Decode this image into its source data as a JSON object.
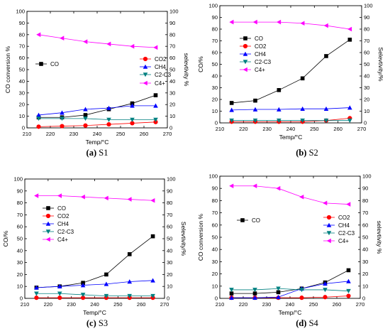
{
  "chart_data": [
    {
      "type": "line",
      "caption": {
        "letter": "(a)",
        "name": "S1"
      },
      "xlabel": "Temp/°C",
      "ylabel": "CO conversion %",
      "ylabel_right": "selevtivity %",
      "xlim": [
        210,
        270
      ],
      "xticks": [
        210,
        220,
        230,
        240,
        250,
        260,
        270
      ],
      "ylim": [
        0,
        100
      ],
      "yticks": [
        0,
        10,
        20,
        30,
        40,
        50,
        60,
        70,
        80,
        90,
        100
      ],
      "x": [
        215,
        225,
        235,
        245,
        255,
        265
      ],
      "legend": "split",
      "series": [
        {
          "name": "CO",
          "color": "#000000",
          "marker": "square",
          "axis": "left",
          "values": [
            9,
            9,
            11,
            16,
            21,
            28
          ]
        },
        {
          "name": "CO2",
          "color": "#ff0000",
          "marker": "circle",
          "axis": "right",
          "values": [
            1,
            1.5,
            2,
            3,
            4,
            5
          ]
        },
        {
          "name": "CH4",
          "color": "#0000ff",
          "marker": "triangle-up",
          "axis": "right",
          "values": [
            11,
            13,
            16,
            17,
            19,
            19
          ]
        },
        {
          "name": "C2-C3",
          "color": "#008080",
          "marker": "triangle-down",
          "axis": "right",
          "values": [
            8,
            8,
            8,
            7,
            7,
            7
          ]
        },
        {
          "name": "C4+",
          "color": "#ff00ff",
          "marker": "triangle-left",
          "axis": "right",
          "values": [
            80,
            77,
            74,
            72,
            70,
            69
          ]
        }
      ]
    },
    {
      "type": "line",
      "caption": {
        "letter": "(b)",
        "name": "S2"
      },
      "xlabel": "Temp/°C",
      "ylabel": "CO/%",
      "ylabel_right": "Selevtivity/%",
      "xlim": [
        210,
        270
      ],
      "xticks": [
        210,
        220,
        230,
        240,
        250,
        260,
        270
      ],
      "ylim": [
        0,
        100
      ],
      "yticks": [
        0,
        10,
        20,
        30,
        40,
        50,
        60,
        70,
        80,
        90,
        100
      ],
      "x": [
        215,
        225,
        235,
        245,
        255,
        265
      ],
      "legend": "upper-left",
      "series": [
        {
          "name": "CO",
          "color": "#000000",
          "marker": "square",
          "axis": "left",
          "values": [
            17,
            19,
            28,
            38,
            57,
            71
          ]
        },
        {
          "name": "CO2",
          "color": "#ff0000",
          "marker": "circle",
          "axis": "right",
          "values": [
            1,
            1,
            1,
            1,
            2,
            4
          ]
        },
        {
          "name": "CH4",
          "color": "#0000ff",
          "marker": "triangle-up",
          "axis": "right",
          "values": [
            11,
            11.5,
            11.5,
            12,
            12,
            13
          ]
        },
        {
          "name": "C2-C3",
          "color": "#008080",
          "marker": "triangle-down",
          "axis": "right",
          "values": [
            2,
            2,
            2,
            2,
            2,
            2
          ]
        },
        {
          "name": "C4+",
          "color": "#ff00ff",
          "marker": "triangle-left",
          "axis": "right",
          "values": [
            86,
            86,
            86,
            85,
            83,
            80
          ]
        }
      ]
    },
    {
      "type": "line",
      "caption": {
        "letter": "(c)",
        "name": "S3"
      },
      "xlabel": "Temp/°C",
      "ylabel": "CO/%",
      "ylabel_right": "Selevtivity/%",
      "xlim": [
        210,
        270
      ],
      "xticks": [
        210,
        220,
        230,
        240,
        250,
        260,
        270
      ],
      "ylim": [
        0,
        100
      ],
      "yticks": [
        0,
        10,
        20,
        30,
        40,
        50,
        60,
        70,
        80,
        90,
        100
      ],
      "x": [
        215,
        225,
        235,
        245,
        255,
        265
      ],
      "legend": "left",
      "series": [
        {
          "name": "CO",
          "color": "#000000",
          "marker": "square",
          "axis": "left",
          "values": [
            9,
            10,
            13,
            20,
            37,
            52
          ]
        },
        {
          "name": "CO2",
          "color": "#ff0000",
          "marker": "circle",
          "axis": "right",
          "values": [
            0.5,
            0.5,
            0.5,
            0.5,
            0.5,
            0.5
          ]
        },
        {
          "name": "CH4",
          "color": "#0000ff",
          "marker": "triangle-up",
          "axis": "right",
          "values": [
            9,
            10,
            11,
            12,
            14,
            15
          ]
        },
        {
          "name": "C2-C3",
          "color": "#008080",
          "marker": "triangle-down",
          "axis": "right",
          "values": [
            4,
            4,
            3,
            2,
            2,
            2
          ]
        },
        {
          "name": "C4+",
          "color": "#ff00ff",
          "marker": "triangle-left",
          "axis": "right",
          "values": [
            86,
            86,
            85,
            84,
            83,
            82
          ]
        }
      ]
    },
    {
      "type": "line",
      "caption": {
        "letter": "(d)",
        "name": "S4"
      },
      "xlabel": "Temp/°C",
      "ylabel": "CO conversion %",
      "ylabel_right": "selevtivity %",
      "xlim": [
        210,
        270
      ],
      "xticks": [
        210,
        220,
        230,
        240,
        250,
        260,
        270
      ],
      "ylim": [
        0,
        100
      ],
      "yticks": [
        0,
        10,
        20,
        30,
        40,
        50,
        60,
        70,
        80,
        90,
        100
      ],
      "x": [
        215,
        225,
        235,
        245,
        255,
        265
      ],
      "legend": "split",
      "series": [
        {
          "name": "CO",
          "color": "#000000",
          "marker": "square",
          "axis": "left",
          "values": [
            4,
            4,
            5,
            8,
            13,
            23
          ]
        },
        {
          "name": "CO2",
          "color": "#ff0000",
          "marker": "circle",
          "axis": "right",
          "values": [
            0.5,
            0.5,
            0.5,
            0.5,
            1,
            2
          ]
        },
        {
          "name": "CH4",
          "color": "#0000ff",
          "marker": "triangle-up",
          "axis": "right",
          "values": [
            0.5,
            0.5,
            1,
            8,
            12,
            14
          ]
        },
        {
          "name": "C2-C3",
          "color": "#008080",
          "marker": "triangle-down",
          "axis": "right",
          "values": [
            7,
            7,
            8,
            7,
            7,
            6
          ]
        },
        {
          "name": "C4+",
          "color": "#ff00ff",
          "marker": "triangle-left",
          "axis": "right",
          "values": [
            92,
            92,
            90,
            83,
            78,
            77
          ]
        }
      ]
    }
  ]
}
